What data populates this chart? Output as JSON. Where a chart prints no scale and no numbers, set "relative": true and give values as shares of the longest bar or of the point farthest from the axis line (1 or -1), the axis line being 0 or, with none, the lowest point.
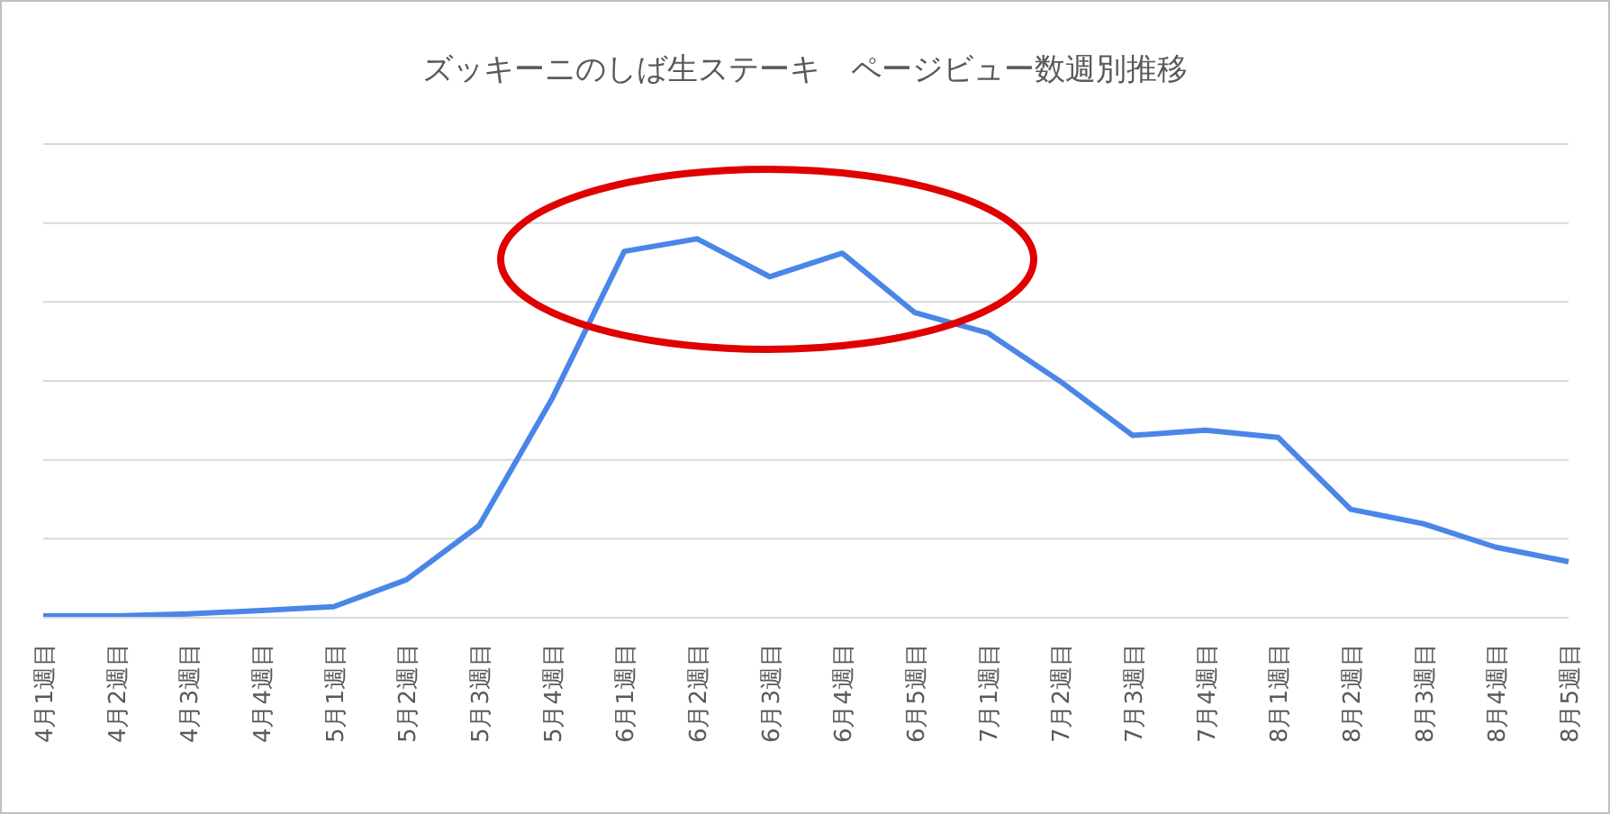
{
  "chart_data": {
    "type": "line",
    "title": "ズッキーニのしば生ステーキ　ページビュー数週別推移",
    "relative": true,
    "grid": "y",
    "legend": false,
    "marker": "none",
    "line_style": "solid",
    "categories": [
      "4月1週目",
      "4月2週目",
      "4月3週目",
      "4月4週目",
      "5月1週目",
      "5月2週目",
      "5月3週目",
      "5月4週目",
      "6月1週目",
      "6月2週目",
      "6月3週目",
      "6月4週目",
      "6月5週目",
      "7月1週目",
      "7月2週目",
      "7月3週目",
      "7月4週目",
      "8月1週目",
      "8月2週目",
      "8月3週目",
      "8月4週目",
      "8月5週目"
    ],
    "series": [
      {
        "color": "#4a86e8",
        "values": [
          0.005,
          0.005,
          0.01,
          0.019,
          0.029,
          0.1,
          0.243,
          0.576,
          0.967,
          1,
          0.9,
          0.962,
          0.805,
          0.752,
          0.624,
          0.481,
          0.495,
          0.476,
          0.286,
          0.248,
          0.186,
          0.148
        ]
      }
    ]
  }
}
